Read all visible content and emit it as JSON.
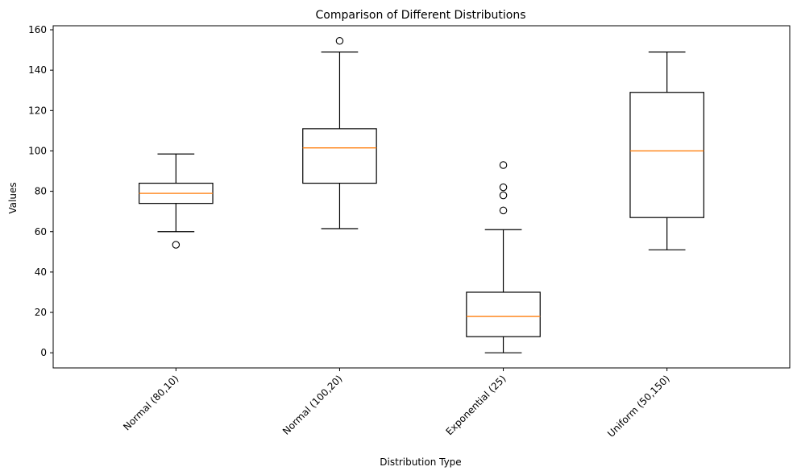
{
  "chart_data": {
    "type": "boxplot",
    "title": "Comparison of Different Distributions",
    "xlabel": "Distribution Type",
    "ylabel": "Values",
    "ylim": [
      -7.5,
      162
    ],
    "yticks": [
      0,
      20,
      40,
      60,
      80,
      100,
      120,
      140,
      160
    ],
    "grid": false,
    "colors": {
      "box": "#000000",
      "median": "#ff7f0e",
      "background": "#ffffff"
    },
    "categories": [
      "Normal (80,10)",
      "Normal (100,20)",
      "Exponential (25)",
      "Uniform (50,150)"
    ],
    "boxes": [
      {
        "name": "Normal (80,10)",
        "whisker_low": 60,
        "q1": 74,
        "median": 79,
        "q3": 84,
        "whisker_high": 98.5,
        "outliers": [
          53.5
        ]
      },
      {
        "name": "Normal (100,20)",
        "whisker_low": 61.5,
        "q1": 84,
        "median": 101.5,
        "q3": 111,
        "whisker_high": 149,
        "outliers": [
          154.5
        ]
      },
      {
        "name": "Exponential (25)",
        "whisker_low": 0,
        "q1": 8,
        "median": 18,
        "q3": 30,
        "whisker_high": 61,
        "outliers": [
          70.5,
          78,
          82,
          93
        ]
      },
      {
        "name": "Uniform (50,150)",
        "whisker_low": 51,
        "q1": 67,
        "median": 100,
        "q3": 129,
        "whisker_high": 149,
        "outliers": []
      }
    ]
  }
}
